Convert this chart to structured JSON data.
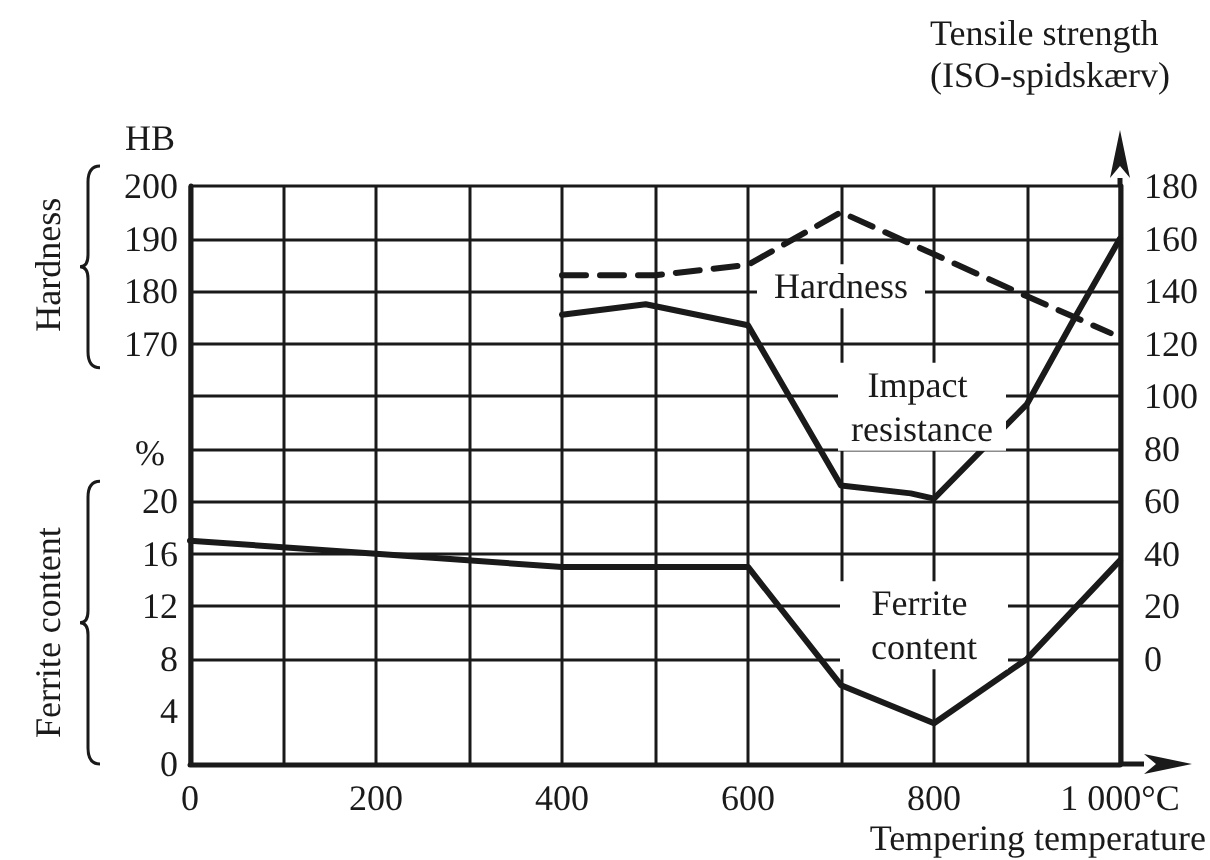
{
  "chart_data": {
    "type": "line",
    "xlabel": "Tempering temperature",
    "ylabel": "Ferrite content",
    "y2label": "Tensile strength (ISO-spidskærv)",
    "y3label": "Hardness",
    "annotations": [
      "HB",
      "%"
    ],
    "xlim": [
      0,
      1000
    ],
    "xticks": [
      0,
      {
        "value": 100,
        "label": null
      },
      200,
      {
        "value": 300,
        "label": null
      },
      400,
      {
        "value": 500,
        "label": null
      },
      600,
      {
        "value": 700,
        "label": null
      },
      800,
      {
        "value": 900,
        "label": null
      },
      {
        "value": 1000,
        "label": "1 000°C"
      }
    ],
    "ylim": [
      0,
      44
    ],
    "yticks": [
      0,
      4,
      8,
      12,
      16,
      20
    ],
    "y2lim": [
      -40,
      180
    ],
    "y2ticks": [
      0,
      20,
      40,
      60,
      80,
      100,
      120,
      140,
      160,
      180
    ],
    "y3lim": [
      90,
      200
    ],
    "y3ticks": [
      170,
      180,
      190,
      200
    ],
    "grid": true,
    "marker": "none",
    "series": [
      {
        "name": "Hardness",
        "axis": "y3",
        "color": "#1a1a1a",
        "line_style": "dashed",
        "x": [
          400,
          500,
          600,
          700,
          800,
          900,
          990
        ],
        "values": [
          183,
          183,
          185,
          195,
          187,
          179,
          172
        ]
      },
      {
        "name": "Impact resistance",
        "axis": "y2",
        "color": "#1a1a1a",
        "line_style": "solid",
        "x": [
          400,
          490,
          600,
          700,
          775,
          800,
          900,
          950,
          1000
        ],
        "values": [
          131,
          135,
          127,
          66,
          63,
          61,
          97,
          129,
          160
        ]
      },
      {
        "name": "Ferrite content",
        "axis": "y",
        "color": "#1a1a1a",
        "line_style": "solid",
        "x": [
          0,
          200,
          400,
          600,
          700,
          800,
          900,
          1000
        ],
        "values": [
          17,
          16,
          15,
          15,
          6,
          3.1,
          8,
          15.5
        ]
      }
    ]
  }
}
